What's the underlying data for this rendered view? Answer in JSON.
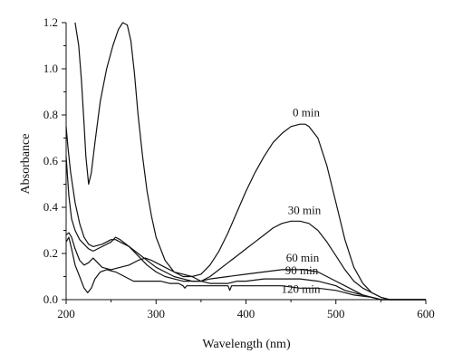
{
  "chart_data": {
    "type": "line",
    "xlabel": "Wavelength (nm)",
    "ylabel": "Absorbance",
    "xlim": [
      200,
      600
    ],
    "ylim": [
      0,
      1.2
    ],
    "xticks": [
      200,
      300,
      400,
      500,
      600
    ],
    "yticks": [
      0.0,
      0.2,
      0.4,
      0.6,
      0.8,
      1.0,
      1.2
    ],
    "xtick_labels": [
      "200",
      "300",
      "400",
      "500",
      "600"
    ],
    "ytick_labels": [
      "0.0",
      "0.2",
      "0.4",
      "0.6",
      "0.8",
      "1.0",
      "1.2"
    ],
    "grid": false,
    "legend": "none",
    "line_color": "#111111",
    "series": [
      {
        "name": "0 min",
        "points": [
          [
            210,
            1.2
          ],
          [
            214,
            1.1
          ],
          [
            217,
            0.95
          ],
          [
            220,
            0.76
          ],
          [
            222,
            0.62
          ],
          [
            225,
            0.5
          ],
          [
            228,
            0.55
          ],
          [
            232,
            0.68
          ],
          [
            238,
            0.86
          ],
          [
            245,
            1.0
          ],
          [
            252,
            1.1
          ],
          [
            258,
            1.17
          ],
          [
            263,
            1.2
          ],
          [
            268,
            1.19
          ],
          [
            272,
            1.12
          ],
          [
            276,
            0.98
          ],
          [
            280,
            0.8
          ],
          [
            285,
            0.62
          ],
          [
            290,
            0.47
          ],
          [
            295,
            0.36
          ],
          [
            300,
            0.27
          ],
          [
            310,
            0.17
          ],
          [
            320,
            0.12
          ],
          [
            330,
            0.1
          ],
          [
            340,
            0.1
          ],
          [
            350,
            0.11
          ],
          [
            360,
            0.15
          ],
          [
            370,
            0.21
          ],
          [
            380,
            0.29
          ],
          [
            390,
            0.38
          ],
          [
            400,
            0.47
          ],
          [
            410,
            0.55
          ],
          [
            420,
            0.62
          ],
          [
            430,
            0.68
          ],
          [
            440,
            0.72
          ],
          [
            450,
            0.75
          ],
          [
            460,
            0.76
          ],
          [
            466,
            0.76
          ],
          [
            470,
            0.75
          ],
          [
            480,
            0.7
          ],
          [
            490,
            0.58
          ],
          [
            500,
            0.42
          ],
          [
            510,
            0.26
          ],
          [
            520,
            0.14
          ],
          [
            530,
            0.07
          ],
          [
            540,
            0.03
          ],
          [
            550,
            0.01
          ],
          [
            560,
            0.0
          ],
          [
            580,
            0.0
          ],
          [
            600,
            0.0
          ]
        ]
      },
      {
        "name": "30 min",
        "points": [
          [
            200,
            0.75
          ],
          [
            202,
            0.66
          ],
          [
            205,
            0.55
          ],
          [
            210,
            0.42
          ],
          [
            215,
            0.33
          ],
          [
            220,
            0.27
          ],
          [
            225,
            0.24
          ],
          [
            230,
            0.23
          ],
          [
            240,
            0.24
          ],
          [
            250,
            0.26
          ],
          [
            255,
            0.26
          ],
          [
            260,
            0.25
          ],
          [
            270,
            0.23
          ],
          [
            280,
            0.2
          ],
          [
            290,
            0.17
          ],
          [
            300,
            0.14
          ],
          [
            310,
            0.12
          ],
          [
            320,
            0.1
          ],
          [
            330,
            0.09
          ],
          [
            340,
            0.08
          ],
          [
            350,
            0.08
          ],
          [
            360,
            0.1
          ],
          [
            370,
            0.13
          ],
          [
            380,
            0.16
          ],
          [
            390,
            0.19
          ],
          [
            400,
            0.22
          ],
          [
            410,
            0.25
          ],
          [
            420,
            0.28
          ],
          [
            430,
            0.31
          ],
          [
            440,
            0.33
          ],
          [
            450,
            0.34
          ],
          [
            460,
            0.34
          ],
          [
            470,
            0.33
          ],
          [
            480,
            0.3
          ],
          [
            490,
            0.25
          ],
          [
            500,
            0.19
          ],
          [
            510,
            0.13
          ],
          [
            520,
            0.08
          ],
          [
            530,
            0.05
          ],
          [
            540,
            0.03
          ],
          [
            550,
            0.01
          ],
          [
            560,
            0.0
          ],
          [
            600,
            0.0
          ]
        ]
      },
      {
        "name": "60 min",
        "points": [
          [
            200,
            0.62
          ],
          [
            203,
            0.45
          ],
          [
            206,
            0.35
          ],
          [
            210,
            0.3
          ],
          [
            215,
            0.26
          ],
          [
            220,
            0.24
          ],
          [
            225,
            0.22
          ],
          [
            230,
            0.21
          ],
          [
            240,
            0.23
          ],
          [
            250,
            0.25
          ],
          [
            255,
            0.27
          ],
          [
            260,
            0.26
          ],
          [
            270,
            0.23
          ],
          [
            280,
            0.19
          ],
          [
            290,
            0.15
          ],
          [
            300,
            0.12
          ],
          [
            310,
            0.1
          ],
          [
            320,
            0.09
          ],
          [
            330,
            0.08
          ],
          [
            340,
            0.08
          ],
          [
            350,
            0.08
          ],
          [
            360,
            0.09
          ],
          [
            380,
            0.1
          ],
          [
            400,
            0.11
          ],
          [
            420,
            0.12
          ],
          [
            440,
            0.13
          ],
          [
            455,
            0.13
          ],
          [
            465,
            0.13
          ],
          [
            480,
            0.12
          ],
          [
            490,
            0.1
          ],
          [
            500,
            0.08
          ],
          [
            510,
            0.06
          ],
          [
            520,
            0.04
          ],
          [
            530,
            0.02
          ],
          [
            540,
            0.01
          ],
          [
            550,
            0.0
          ],
          [
            600,
            0.0
          ]
        ]
      },
      {
        "name": "90 min",
        "points": [
          [
            200,
            0.28
          ],
          [
            203,
            0.29
          ],
          [
            206,
            0.27
          ],
          [
            210,
            0.22
          ],
          [
            215,
            0.17
          ],
          [
            220,
            0.15
          ],
          [
            225,
            0.16
          ],
          [
            230,
            0.18
          ],
          [
            235,
            0.16
          ],
          [
            240,
            0.14
          ],
          [
            250,
            0.13
          ],
          [
            260,
            0.14
          ],
          [
            270,
            0.15
          ],
          [
            280,
            0.17
          ],
          [
            288,
            0.18
          ],
          [
            295,
            0.17
          ],
          [
            300,
            0.16
          ],
          [
            310,
            0.14
          ],
          [
            320,
            0.12
          ],
          [
            330,
            0.11
          ],
          [
            340,
            0.1
          ],
          [
            350,
            0.08
          ],
          [
            360,
            0.07
          ],
          [
            370,
            0.07
          ],
          [
            380,
            0.07
          ],
          [
            390,
            0.08
          ],
          [
            400,
            0.08
          ],
          [
            420,
            0.09
          ],
          [
            440,
            0.09
          ],
          [
            460,
            0.09
          ],
          [
            480,
            0.08
          ],
          [
            490,
            0.07
          ],
          [
            500,
            0.06
          ],
          [
            510,
            0.04
          ],
          [
            520,
            0.03
          ],
          [
            530,
            0.02
          ],
          [
            540,
            0.01
          ],
          [
            550,
            0.0
          ],
          [
            600,
            0.0
          ]
        ]
      },
      {
        "name": "120 min",
        "points": [
          [
            200,
            0.25
          ],
          [
            203,
            0.27
          ],
          [
            206,
            0.22
          ],
          [
            210,
            0.15
          ],
          [
            215,
            0.1
          ],
          [
            220,
            0.05
          ],
          [
            224,
            0.03
          ],
          [
            228,
            0.05
          ],
          [
            232,
            0.09
          ],
          [
            238,
            0.12
          ],
          [
            245,
            0.13
          ],
          [
            255,
            0.12
          ],
          [
            265,
            0.1
          ],
          [
            275,
            0.08
          ],
          [
            285,
            0.08
          ],
          [
            295,
            0.08
          ],
          [
            305,
            0.08
          ],
          [
            315,
            0.07
          ],
          [
            325,
            0.07
          ],
          [
            330,
            0.06
          ],
          [
            332,
            0.05
          ],
          [
            334,
            0.06
          ],
          [
            340,
            0.06
          ],
          [
            350,
            0.06
          ],
          [
            360,
            0.06
          ],
          [
            370,
            0.06
          ],
          [
            380,
            0.06
          ],
          [
            382,
            0.04
          ],
          [
            384,
            0.06
          ],
          [
            400,
            0.06
          ],
          [
            420,
            0.06
          ],
          [
            440,
            0.06
          ],
          [
            460,
            0.05
          ],
          [
            480,
            0.05
          ],
          [
            500,
            0.04
          ],
          [
            520,
            0.02
          ],
          [
            540,
            0.01
          ],
          [
            550,
            0.0
          ],
          [
            600,
            0.0
          ]
        ]
      }
    ],
    "annotations": [
      {
        "text": "0 min",
        "x": 467,
        "y": 0.795
      },
      {
        "text": "30 min",
        "x": 465,
        "y": 0.37
      },
      {
        "text": "60 min",
        "x": 463,
        "y": 0.165
      },
      {
        "text": "90 min",
        "x": 462,
        "y": 0.11
      },
      {
        "text": "120 min",
        "x": 461,
        "y": 0.03
      }
    ]
  }
}
